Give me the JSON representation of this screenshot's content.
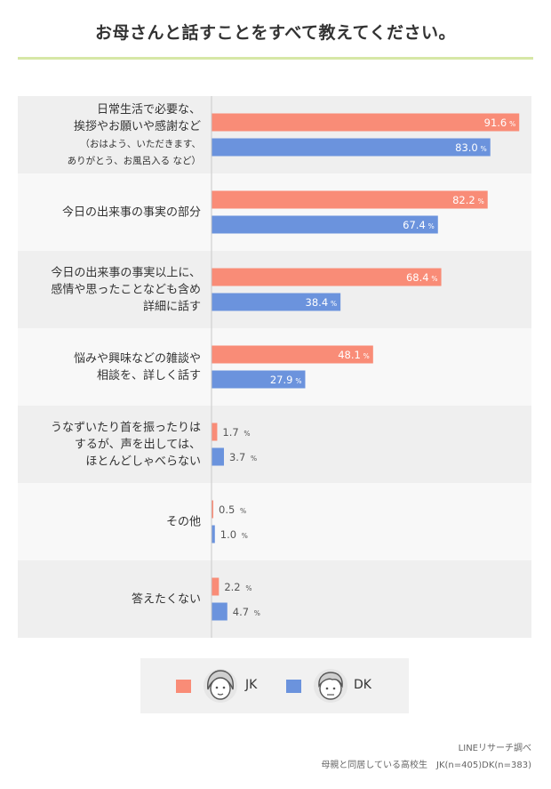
{
  "title": "お母さんと話すことをすべて教えてください。",
  "colors": {
    "jk": "#f98c77",
    "dk": "#6b93dd",
    "band_odd": "#efefef",
    "band_even": "#f8f8f8",
    "accent_rule": "#d6e7a6"
  },
  "legend": {
    "items": [
      {
        "label": "JK",
        "color": "#f98c77",
        "icon": "girl-face-icon"
      },
      {
        "label": "DK",
        "color": "#6b93dd",
        "icon": "boy-face-icon"
      }
    ]
  },
  "chart_data": {
    "type": "bar",
    "orientation": "horizontal",
    "unit": "%",
    "xlim": [
      0,
      100
    ],
    "categories": [
      [
        "日常生活で必要な、",
        "挨拶やお願いや感謝など",
        "（おはよう、いただきます、",
        "ありがとう、お風呂入る など）"
      ],
      [
        "今日の出来事の事実の部分"
      ],
      [
        "今日の出来事の事実以上に、",
        "感情や思ったことなども含め",
        "詳細に話す"
      ],
      [
        "悩みや興味などの雑談や",
        "相談を、詳しく話す"
      ],
      [
        "うなずいたり首を振ったりは",
        "するが、声を出しては、",
        "ほとんどしゃべらない"
      ],
      [
        "その他"
      ],
      [
        "答えたくない"
      ]
    ],
    "series": [
      {
        "name": "JK",
        "color": "#f98c77",
        "values": [
          91.6,
          82.2,
          68.4,
          48.1,
          1.7,
          0.5,
          2.2
        ]
      },
      {
        "name": "DK",
        "color": "#6b93dd",
        "values": [
          83.0,
          67.4,
          38.4,
          27.9,
          3.7,
          1.0,
          4.7
        ]
      }
    ]
  },
  "source": {
    "line1": "LINEリサーチ調べ",
    "line2": "母親と同居している高校生　JK(n=405)DK(n=383)"
  }
}
